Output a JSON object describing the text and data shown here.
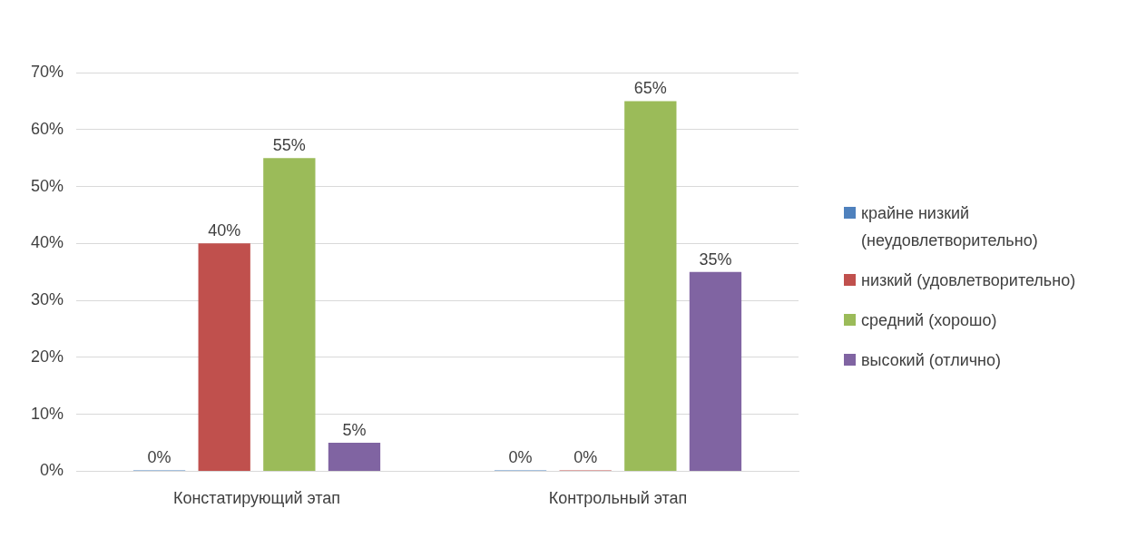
{
  "chart_data": {
    "type": "bar",
    "categories": [
      "Констатирующий этап",
      "Контрольный этап"
    ],
    "series": [
      {
        "name": "крайне низкий (неудовлетворительно)",
        "color": "#4f81bd",
        "values": [
          0,
          0
        ],
        "value_labels": [
          "0%",
          "0%"
        ]
      },
      {
        "name": "низкий (удовлетворительно)",
        "color": "#c0504d",
        "values": [
          40,
          0
        ],
        "value_labels": [
          "40%",
          "0%"
        ]
      },
      {
        "name": "средний (хорошо)",
        "color": "#9bbb59",
        "values": [
          55,
          65
        ],
        "value_labels": [
          "55%",
          "65%"
        ]
      },
      {
        "name": "высокий (отлично)",
        "color": "#8064a2",
        "values": [
          5,
          35
        ],
        "value_labels": [
          "5%",
          "35%"
        ]
      }
    ],
    "ylim": [
      0,
      70
    ],
    "yticks": [
      {
        "value": 0,
        "label": "0%"
      },
      {
        "value": 10,
        "label": "10%"
      },
      {
        "value": 20,
        "label": "20%"
      },
      {
        "value": 30,
        "label": "30%"
      },
      {
        "value": 40,
        "label": "40%"
      },
      {
        "value": 50,
        "label": "50%"
      },
      {
        "value": 60,
        "label": "60%"
      },
      {
        "value": 70,
        "label": "70%"
      }
    ],
    "grid": "y",
    "legend": "right"
  }
}
